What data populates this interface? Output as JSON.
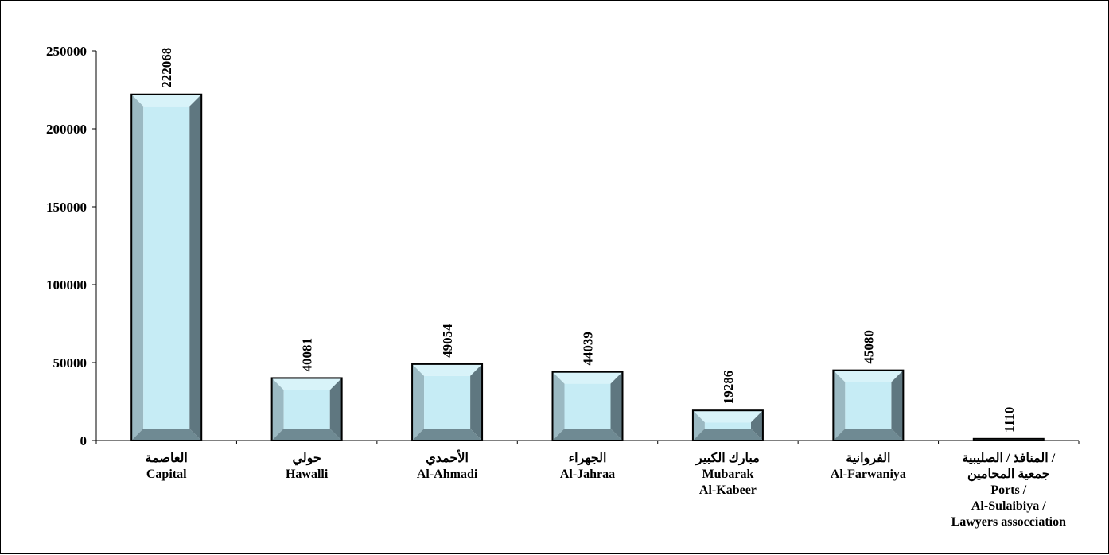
{
  "chart_data": {
    "type": "bar",
    "categories": [
      [
        "العاصمة",
        "Capital"
      ],
      [
        "حولي",
        "Hawalli"
      ],
      [
        "الأحمدي",
        "Al-Ahmadi"
      ],
      [
        "الجهراء",
        "Al-Jahraa"
      ],
      [
        "مبارك الكبير",
        "Mubarak",
        "Al-Kabeer"
      ],
      [
        "الفروانية",
        "Al-Farwaniya"
      ],
      [
        "المنافذ / الصليبية /",
        "جمعية المحامين",
        "Ports /",
        "Al-Sulaibiya /",
        "Lawyers assocciation"
      ]
    ],
    "values": [
      222068,
      40081,
      49054,
      44039,
      19286,
      45080,
      1110
    ],
    "data_labels": [
      "222068",
      "40081",
      "49054",
      "44039",
      "19286",
      "45080",
      "1110"
    ],
    "ylim": [
      0,
      250000
    ],
    "yticks": [
      0,
      50000,
      100000,
      150000,
      200000,
      250000
    ],
    "ytick_labels": [
      "0",
      "50000",
      "100000",
      "150000",
      "200000",
      "250000"
    ],
    "title": "",
    "xlabel": "",
    "ylabel": "",
    "grid": false,
    "legend": "none",
    "colors": {
      "bar_face": "#c6ecf5",
      "bar_left": "#9bb9c2",
      "bar_top": "#d8f3f9",
      "bar_right": "#5f7780",
      "bar_bottom": "#6f8a93",
      "bar_outline": "#000000"
    }
  }
}
